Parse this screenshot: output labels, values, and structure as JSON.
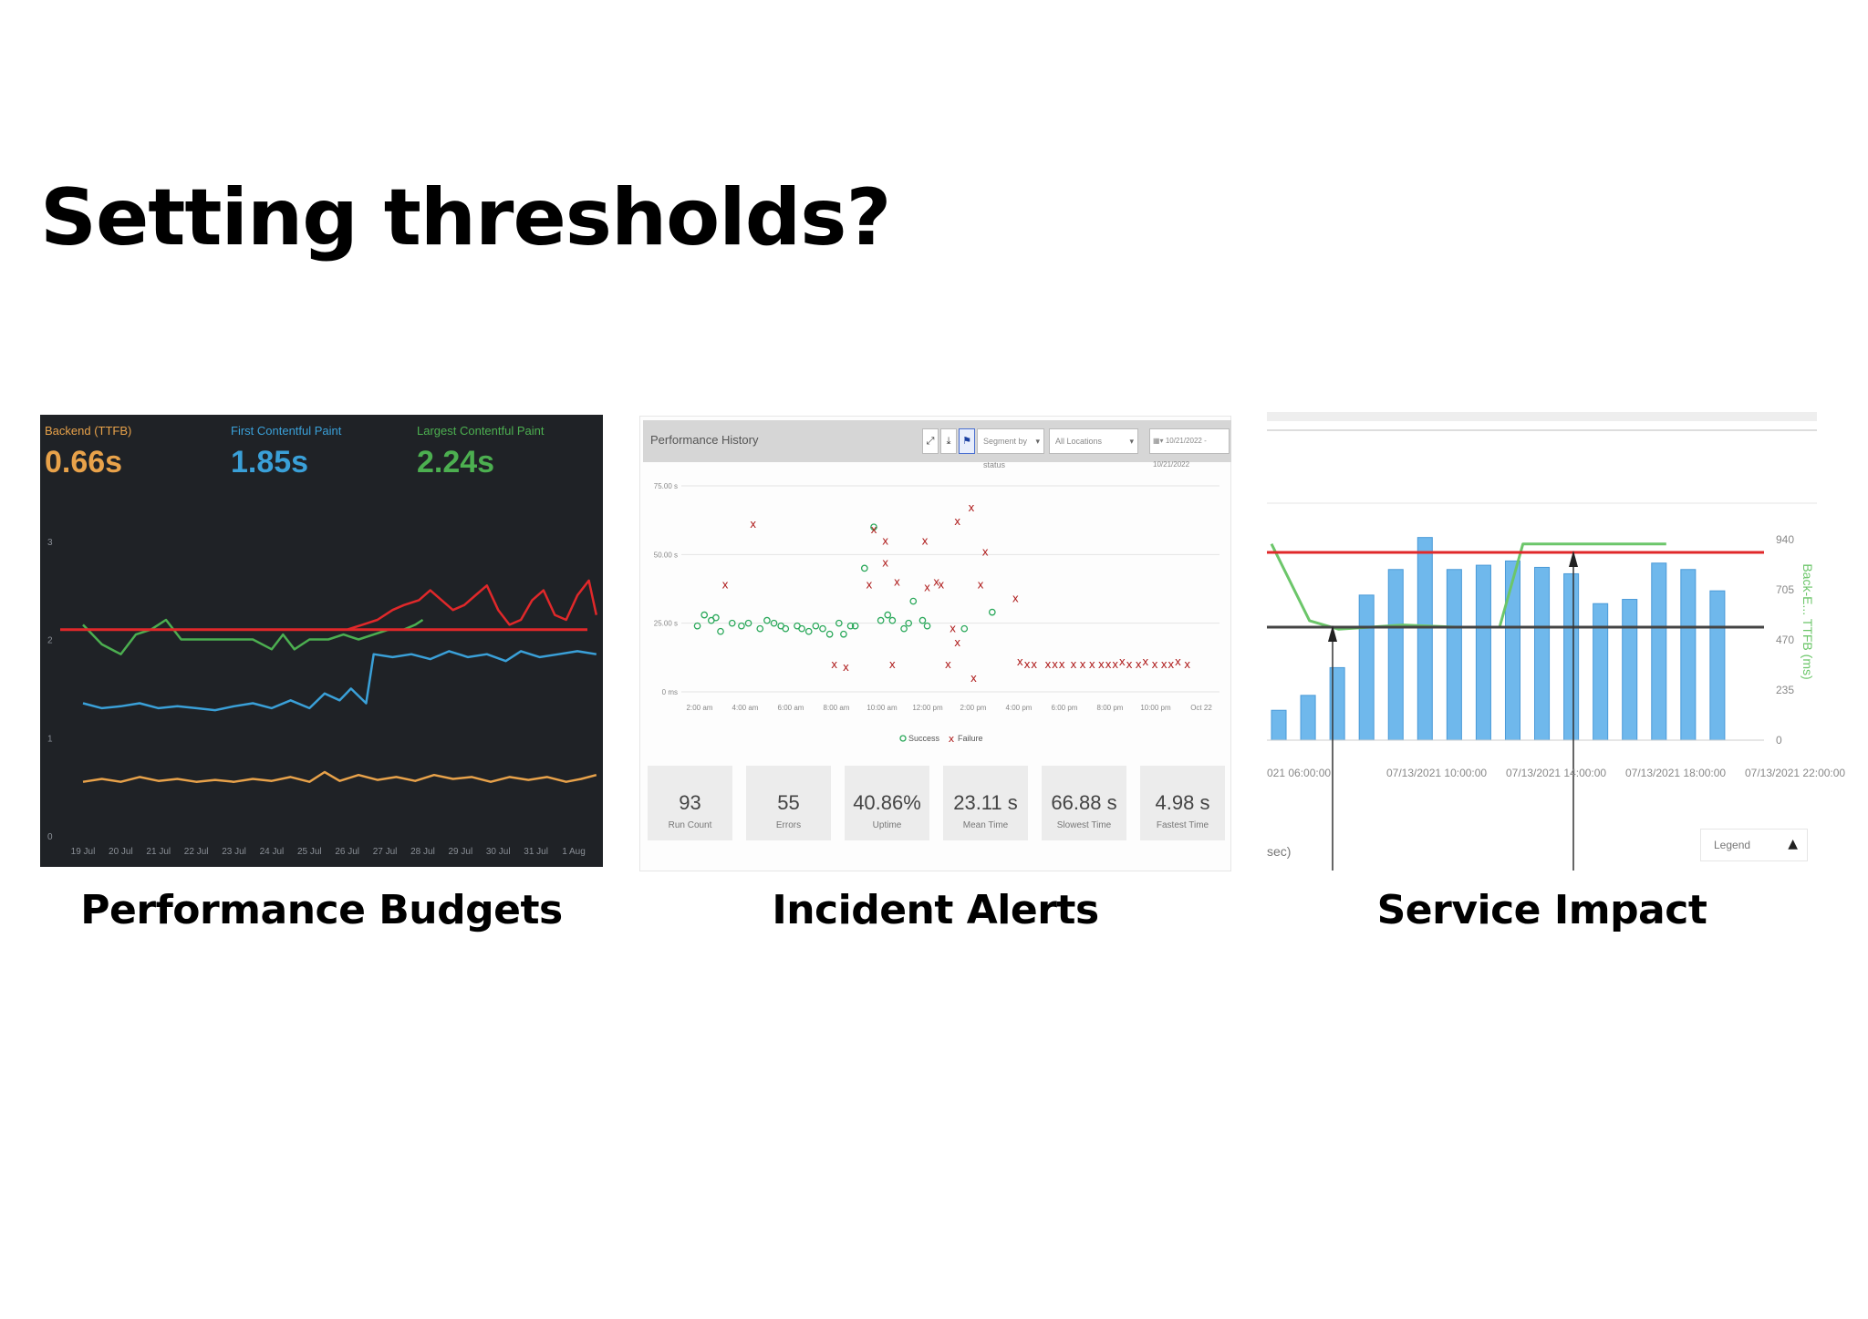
{
  "slide": {
    "title": "Setting thresholds?",
    "captions": [
      "Performance Budgets",
      "Incident Alerts",
      "Service Impact"
    ]
  },
  "colors": {
    "dark_bg": "#1f2226",
    "backend_orange": "#e8a24a",
    "fcp_blue": "#3aa0d8",
    "lcp_green": "#4caf50",
    "threshold_red": "#e0282a",
    "success_green": "#2aa85a",
    "failure_red": "#b02020",
    "bar_blue": "#6fb8ec"
  },
  "panel1": {
    "metrics": [
      {
        "label": "Backend (TTFB)",
        "value": "0.66s",
        "color": "#e8a24a"
      },
      {
        "label": "First Contentful Paint",
        "value": "1.85s",
        "color": "#3aa0d8"
      },
      {
        "label": "Largest Contentful Paint",
        "value": "2.24s",
        "color": "#4caf50"
      }
    ],
    "chart_data": {
      "type": "line",
      "categories": [
        "19 Jul",
        "20 Jul",
        "21 Jul",
        "22 Jul",
        "23 Jul",
        "24 Jul",
        "25 Jul",
        "26 Jul",
        "27 Jul",
        "28 Jul",
        "29 Jul",
        "30 Jul",
        "31 Jul",
        "1 Aug"
      ],
      "yticks": [
        "0",
        "1",
        "2",
        "3"
      ],
      "ylim": [
        0,
        3.1
      ],
      "threshold": 2.1,
      "series": [
        {
          "color": "#4caf50",
          "points": [
            [
              0,
              2.15
            ],
            [
              0.5,
              1.95
            ],
            [
              1.0,
              1.85
            ],
            [
              1.4,
              2.05
            ],
            [
              1.8,
              2.1
            ],
            [
              2.2,
              2.2
            ],
            [
              2.6,
              2.0
            ],
            [
              3.0,
              2.0
            ],
            [
              3.5,
              2.0
            ],
            [
              4.0,
              2.0
            ],
            [
              4.5,
              2.0
            ],
            [
              5.0,
              1.9
            ],
            [
              5.3,
              2.05
            ],
            [
              5.6,
              1.9
            ],
            [
              6.0,
              2.0
            ],
            [
              6.5,
              2.0
            ],
            [
              6.9,
              2.05
            ],
            [
              7.3,
              2.0
            ],
            [
              7.7,
              2.05
            ],
            [
              8.1,
              2.1
            ],
            [
              8.5,
              2.1
            ],
            [
              8.8,
              2.15
            ],
            [
              9.0,
              2.2
            ]
          ]
        },
        {
          "color": "#e0282a",
          "points": [
            [
              7.0,
              2.1
            ],
            [
              7.4,
              2.15
            ],
            [
              7.8,
              2.2
            ],
            [
              8.2,
              2.3
            ],
            [
              8.5,
              2.35
            ],
            [
              8.9,
              2.4
            ],
            [
              9.2,
              2.5
            ],
            [
              9.5,
              2.4
            ],
            [
              9.8,
              2.3
            ],
            [
              10.1,
              2.35
            ],
            [
              10.4,
              2.45
            ],
            [
              10.7,
              2.55
            ],
            [
              11.0,
              2.3
            ],
            [
              11.3,
              2.15
            ],
            [
              11.6,
              2.2
            ],
            [
              11.9,
              2.4
            ],
            [
              12.2,
              2.5
            ],
            [
              12.5,
              2.25
            ],
            [
              12.8,
              2.2
            ],
            [
              13.1,
              2.45
            ],
            [
              13.4,
              2.6
            ],
            [
              13.6,
              2.25
            ]
          ]
        },
        {
          "color": "#3aa0d8",
          "points": [
            [
              0,
              1.35
            ],
            [
              0.5,
              1.3
            ],
            [
              1.0,
              1.32
            ],
            [
              1.5,
              1.35
            ],
            [
              2.0,
              1.3
            ],
            [
              2.5,
              1.32
            ],
            [
              3.0,
              1.3
            ],
            [
              3.5,
              1.28
            ],
            [
              4.0,
              1.32
            ],
            [
              4.5,
              1.35
            ],
            [
              5.0,
              1.3
            ],
            [
              5.5,
              1.38
            ],
            [
              6.0,
              1.3
            ],
            [
              6.4,
              1.45
            ],
            [
              6.8,
              1.38
            ],
            [
              7.1,
              1.5
            ],
            [
              7.5,
              1.35
            ],
            [
              7.7,
              1.85
            ],
            [
              8.2,
              1.82
            ],
            [
              8.7,
              1.85
            ],
            [
              9.2,
              1.8
            ],
            [
              9.7,
              1.88
            ],
            [
              10.2,
              1.82
            ],
            [
              10.7,
              1.85
            ],
            [
              11.2,
              1.78
            ],
            [
              11.6,
              1.88
            ],
            [
              12.1,
              1.82
            ],
            [
              12.6,
              1.85
            ],
            [
              13.1,
              1.88
            ],
            [
              13.6,
              1.85
            ]
          ]
        },
        {
          "color": "#e8a24a",
          "points": [
            [
              0,
              0.55
            ],
            [
              0.5,
              0.58
            ],
            [
              1.0,
              0.55
            ],
            [
              1.5,
              0.6
            ],
            [
              2.0,
              0.56
            ],
            [
              2.5,
              0.58
            ],
            [
              3.0,
              0.55
            ],
            [
              3.5,
              0.57
            ],
            [
              4.0,
              0.55
            ],
            [
              4.5,
              0.58
            ],
            [
              5.0,
              0.56
            ],
            [
              5.5,
              0.6
            ],
            [
              6.0,
              0.55
            ],
            [
              6.4,
              0.65
            ],
            [
              6.8,
              0.56
            ],
            [
              7.3,
              0.62
            ],
            [
              7.8,
              0.57
            ],
            [
              8.3,
              0.6
            ],
            [
              8.8,
              0.56
            ],
            [
              9.3,
              0.62
            ],
            [
              9.8,
              0.58
            ],
            [
              10.3,
              0.6
            ],
            [
              10.8,
              0.55
            ],
            [
              11.3,
              0.6
            ],
            [
              11.8,
              0.57
            ],
            [
              12.3,
              0.6
            ],
            [
              12.8,
              0.55
            ],
            [
              13.2,
              0.58
            ],
            [
              13.6,
              0.62
            ]
          ]
        }
      ]
    }
  },
  "panel2": {
    "title": "Performance History",
    "toolbar": {
      "expand_icon": "⤢",
      "download_icon": "⤓",
      "flag_icon": "⚑",
      "segment_placeholder": "Segment by status",
      "location_placeholder": "All Locations",
      "date_range": "10/21/2022 - 10/21/2022"
    },
    "chart_data": {
      "type": "scatter",
      "yticks": [
        "0 ms",
        "25.00 s",
        "50.00 s",
        "75.00 s"
      ],
      "ylim": [
        0,
        75
      ],
      "xticks": [
        "2:00 am",
        "4:00 am",
        "6:00 am",
        "8:00 am",
        "10:00 am",
        "12:00 pm",
        "2:00 pm",
        "4:00 pm",
        "6:00 pm",
        "8:00 pm",
        "10:00 pm",
        "Oct 22"
      ],
      "xlim": [
        0,
        22
      ],
      "legend": [
        {
          "name": "Success",
          "marker": "o"
        },
        {
          "name": "Failure",
          "marker": "x"
        }
      ],
      "success": [
        [
          0.1,
          24
        ],
        [
          0.4,
          28
        ],
        [
          0.7,
          26
        ],
        [
          0.9,
          27
        ],
        [
          1.1,
          22
        ],
        [
          1.6,
          25
        ],
        [
          2.0,
          24
        ],
        [
          2.3,
          25
        ],
        [
          2.8,
          23
        ],
        [
          3.1,
          26
        ],
        [
          3.4,
          25
        ],
        [
          3.7,
          24
        ],
        [
          3.9,
          23
        ],
        [
          4.4,
          24
        ],
        [
          4.6,
          23
        ],
        [
          4.9,
          22
        ],
        [
          5.2,
          24
        ],
        [
          5.5,
          23
        ],
        [
          5.8,
          21
        ],
        [
          6.2,
          25
        ],
        [
          6.4,
          21
        ],
        [
          6.7,
          24
        ],
        [
          6.9,
          24
        ],
        [
          7.3,
          45
        ],
        [
          7.7,
          60
        ],
        [
          8.0,
          26
        ],
        [
          8.3,
          28
        ],
        [
          8.5,
          26
        ],
        [
          9.0,
          23
        ],
        [
          9.2,
          25
        ],
        [
          9.4,
          33
        ],
        [
          9.8,
          26
        ],
        [
          10.0,
          24
        ],
        [
          11.6,
          23
        ],
        [
          12.8,
          29
        ]
      ],
      "failure": [
        [
          1.3,
          39
        ],
        [
          2.5,
          61
        ],
        [
          6.0,
          10
        ],
        [
          6.5,
          9
        ],
        [
          7.5,
          39
        ],
        [
          7.7,
          59
        ],
        [
          8.2,
          55
        ],
        [
          8.2,
          47
        ],
        [
          8.5,
          10
        ],
        [
          8.7,
          40
        ],
        [
          9.9,
          55
        ],
        [
          10.0,
          38
        ],
        [
          10.4,
          40
        ],
        [
          10.6,
          39
        ],
        [
          10.9,
          10
        ],
        [
          11.1,
          23
        ],
        [
          11.3,
          18
        ],
        [
          11.3,
          62
        ],
        [
          11.9,
          67
        ],
        [
          12.0,
          5
        ],
        [
          12.3,
          39
        ],
        [
          12.5,
          51
        ],
        [
          13.8,
          34
        ],
        [
          14.0,
          11
        ],
        [
          14.3,
          10
        ],
        [
          14.6,
          10
        ],
        [
          15.2,
          10
        ],
        [
          15.5,
          10
        ],
        [
          15.8,
          10
        ],
        [
          16.3,
          10
        ],
        [
          16.7,
          10
        ],
        [
          17.1,
          10
        ],
        [
          17.5,
          10
        ],
        [
          17.8,
          10
        ],
        [
          18.1,
          10
        ],
        [
          18.4,
          11
        ],
        [
          18.7,
          10
        ],
        [
          19.1,
          10
        ],
        [
          19.4,
          11
        ],
        [
          19.8,
          10
        ],
        [
          20.2,
          10
        ],
        [
          20.5,
          10
        ],
        [
          20.8,
          11
        ],
        [
          21.2,
          10
        ]
      ]
    },
    "stats": [
      {
        "value": "93",
        "label": "Run Count"
      },
      {
        "value": "55",
        "label": "Errors"
      },
      {
        "value": "40.86%",
        "label": "Uptime"
      },
      {
        "value": "23.11 s",
        "label": "Mean Time"
      },
      {
        "value": "66.88 s",
        "label": "Slowest Time"
      },
      {
        "value": "4.98 s",
        "label": "Fastest Time"
      }
    ]
  },
  "panel3": {
    "chart_data": {
      "type": "bar",
      "xticks": [
        "021 06:00:00",
        "07/13/2021 10:00:00",
        "07/13/2021 14:00:00",
        "07/13/2021 18:00:00",
        "07/13/2021 22:00:00"
      ],
      "xlabel": "sec)",
      "y2ticks": [
        "0",
        "235",
        "470",
        "705",
        "940"
      ],
      "y2label": "Back-E... TTFB (ms)",
      "ylim": [
        0,
        940
      ],
      "values": [
        140,
        210,
        340,
        680,
        800,
        950,
        800,
        820,
        840,
        810,
        780,
        640,
        660,
        830,
        800,
        700,
        0
      ],
      "line": [
        [
          0,
          920
        ],
        [
          1.3,
          560
        ],
        [
          2.3,
          520
        ],
        [
          4.5,
          540
        ],
        [
          6.3,
          530
        ],
        [
          7.8,
          530
        ],
        [
          8.6,
          920
        ],
        [
          10.5,
          920
        ],
        [
          13.5,
          920
        ]
      ],
      "upper_threshold": 880,
      "lower_threshold": 530,
      "legend_label": "Legend",
      "legend_icon": "▲"
    }
  }
}
